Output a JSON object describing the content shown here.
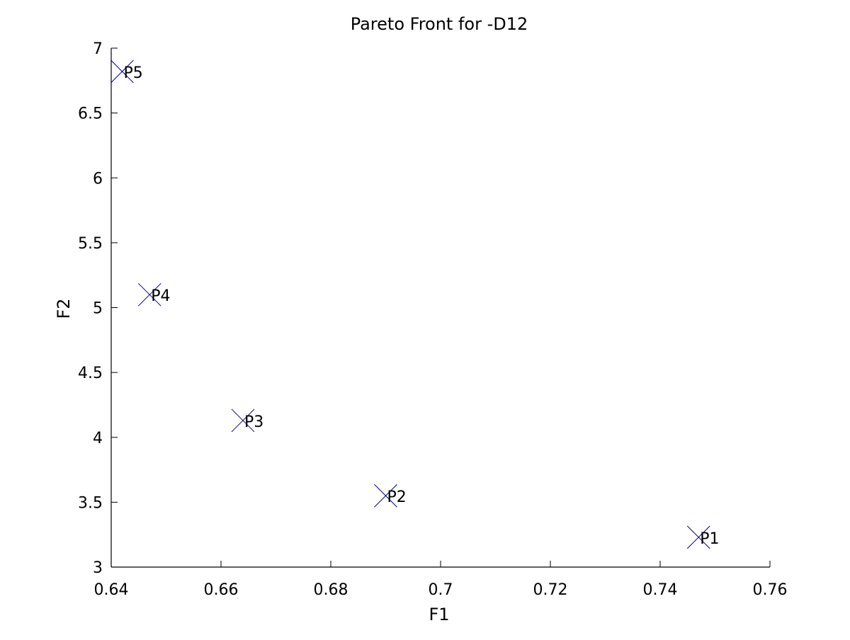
{
  "chart_data": {
    "type": "scatter",
    "title": "Pareto Front for -D12",
    "xlabel": "F1",
    "ylabel": "F2",
    "xlim": [
      0.64,
      0.76
    ],
    "ylim": [
      3,
      7
    ],
    "xticks": [
      "0.64",
      "0.66",
      "0.68",
      "0.7",
      "0.72",
      "0.74",
      "0.76"
    ],
    "yticks": [
      "3",
      "3.5",
      "4",
      "4.5",
      "5",
      "5.5",
      "6",
      "6.5",
      "7"
    ],
    "grid": false,
    "legend": "none",
    "marker": "x",
    "marker_color": "#00008b",
    "points": [
      {
        "label": "P1",
        "x": 0.747,
        "y": 3.23
      },
      {
        "label": "P2",
        "x": 0.69,
        "y": 3.55
      },
      {
        "label": "P3",
        "x": 0.664,
        "y": 4.13
      },
      {
        "label": "P4",
        "x": 0.647,
        "y": 5.1
      },
      {
        "label": "P5",
        "x": 0.642,
        "y": 6.82
      }
    ]
  }
}
